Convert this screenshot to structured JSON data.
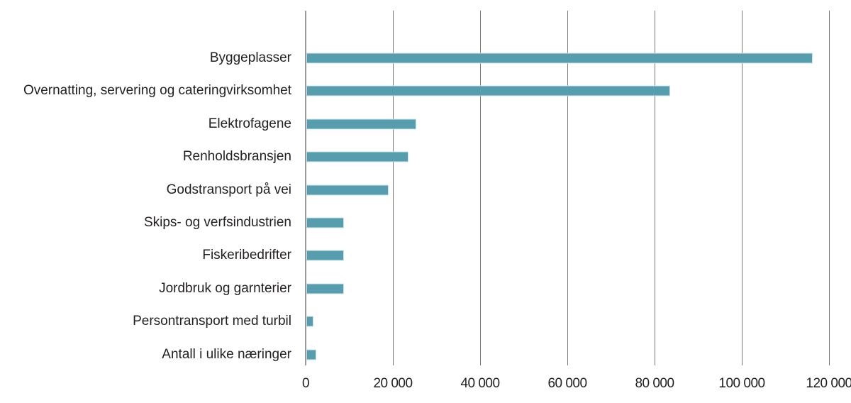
{
  "chart_data": {
    "type": "bar",
    "orientation": "horizontal",
    "title": "",
    "xlabel": "",
    "ylabel": "",
    "categories": [
      "Byggeplasser",
      "Overnatting, servering og cateringvirksomhet",
      "Elektrofagene",
      "Renholdsbransjen",
      "Godstransport på vei",
      "Skips- og verfsindustrien",
      "Fiskeribedrifter",
      "Jordbruk og garnterier",
      "Persontransport med turbil",
      "Antall i ulike næringer"
    ],
    "values": [
      116300,
      83600,
      25300,
      23500,
      19000,
      8800,
      8800,
      8800,
      1800,
      2400
    ],
    "xlim": [
      0,
      120000
    ],
    "xticks": [
      0,
      20000,
      40000,
      60000,
      80000,
      100000,
      120000
    ],
    "xtick_labels": [
      "0",
      "20 000",
      "40 000",
      "60 000",
      "80 000",
      "100 000",
      "120 000"
    ],
    "grid": "vertical",
    "legend": "none",
    "bar_color": "#569dae"
  }
}
